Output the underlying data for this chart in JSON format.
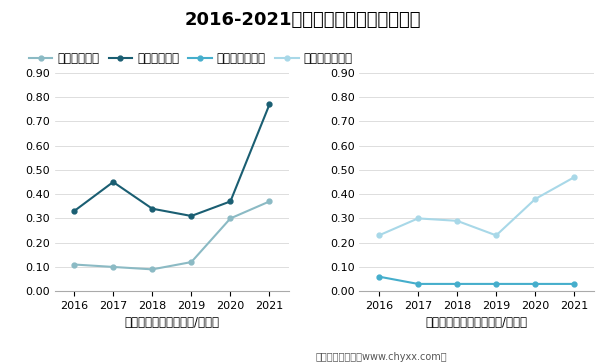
{
  "title": "2016-2021年石英、石英岩进出口均价",
  "years": [
    2016,
    2017,
    2018,
    2019,
    2020,
    2021
  ],
  "shiying_export": [
    0.11,
    0.1,
    0.09,
    0.12,
    0.3,
    0.37
  ],
  "shiying_import": [
    0.33,
    0.45,
    0.34,
    0.31,
    0.37,
    0.77
  ],
  "shiyingyan_export": [
    0.06,
    0.03,
    0.03,
    0.03,
    0.03,
    0.03
  ],
  "shiyingyan_import": [
    0.23,
    0.3,
    0.29,
    0.23,
    0.38,
    0.47
  ],
  "legend_labels": [
    "石英出口均价",
    "石英进口均价",
    "石英岩出口均价",
    "石英岩进口均价"
  ],
  "xlabel_left": "石英进出口均价（美元/千克）",
  "xlabel_right": "石英岩进出口均价（美元/千克）",
  "footer": "制图：智研咨询（www.chyxx.com）",
  "ylim": [
    0.0,
    0.9
  ],
  "yticks": [
    0.0,
    0.1,
    0.2,
    0.3,
    0.4,
    0.5,
    0.6,
    0.7,
    0.8,
    0.9
  ],
  "color_export_shiying": "#8BBAC4",
  "color_import_shiying": "#1A5E72",
  "color_export_shiyingyan": "#45AECC",
  "color_import_shiyingyan": "#A8D8E8",
  "title_fontsize": 13,
  "label_fontsize": 8.5,
  "tick_fontsize": 8,
  "legend_fontsize": 8.5,
  "footer_fontsize": 7
}
